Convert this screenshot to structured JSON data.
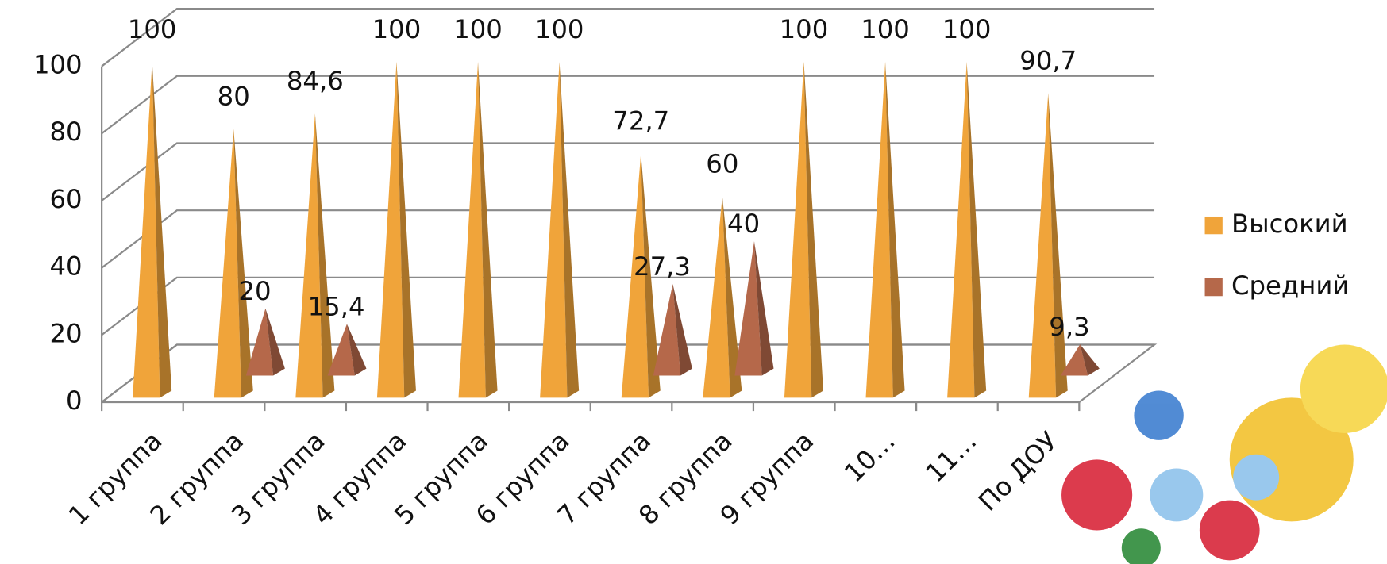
{
  "chart_data": {
    "type": "bar3d",
    "categories": [
      "1 группа",
      "2 группа",
      "3 группа",
      "4 группа",
      "5 группа",
      "6 группа",
      "7 группа",
      "8 группа",
      "9 группа",
      "10…",
      "11…",
      "По ДОУ"
    ],
    "series": [
      {
        "name": "Высокий",
        "color": "#f0a43a",
        "values": [
          100,
          80,
          84.6,
          100,
          100,
          100,
          72.7,
          60,
          100,
          100,
          100,
          90.7
        ],
        "value_labels": [
          "100",
          "80",
          "84,6",
          "100",
          "100",
          "100",
          "72,7",
          "60",
          "100",
          "100",
          "100",
          "90,7"
        ]
      },
      {
        "name": "Средний",
        "color": "#b5684a",
        "values": [
          null,
          20,
          15.4,
          null,
          null,
          null,
          27.3,
          40,
          null,
          null,
          null,
          9.3
        ],
        "value_labels": [
          null,
          "20",
          "15,4",
          null,
          null,
          null,
          "27,3",
          "40",
          null,
          null,
          null,
          "9,3"
        ]
      }
    ],
    "ylim": [
      0,
      100
    ],
    "yticks": [
      0,
      20,
      40,
      60,
      80,
      100
    ],
    "grid": true,
    "legend": "right"
  }
}
